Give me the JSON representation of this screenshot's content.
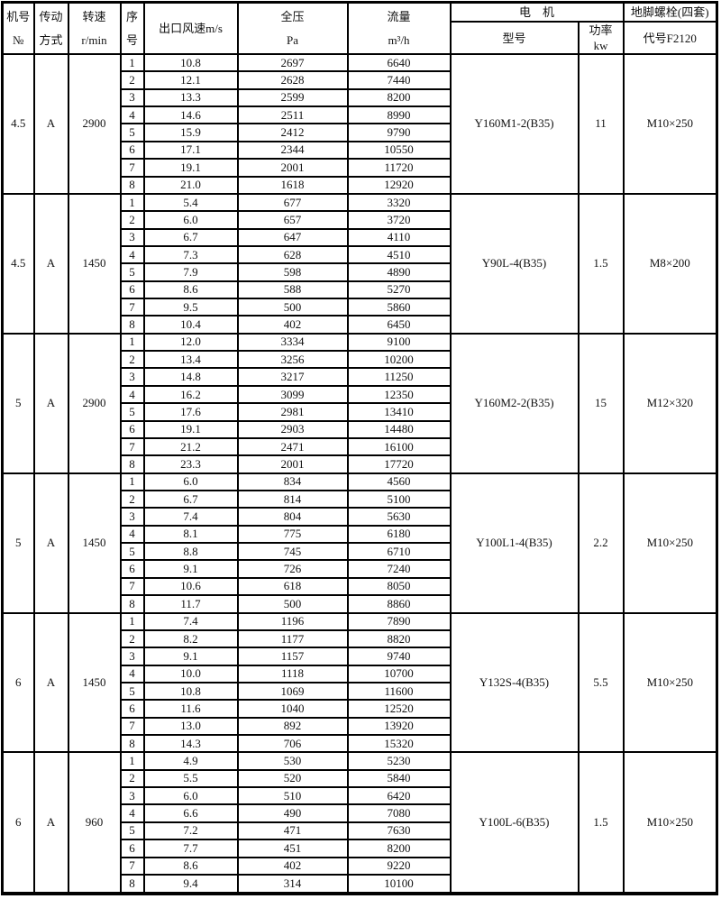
{
  "header": {
    "model_no": "机号\n№",
    "drive_mode": "传动\n方式",
    "speed": "转速\nr/min",
    "seq": "序\n号",
    "outlet_velocity": "出口风速m/s",
    "pressure": "全压\nPa",
    "flow": "流量\nm³/h",
    "motor": "电　机",
    "motor_model": "型号",
    "power": "功率\nkw",
    "bolt_title": "地脚螺栓(四套)",
    "bolt_code": "代号F2120"
  },
  "groups": [
    {
      "model_no": "4.5",
      "drive": "A",
      "rpm": "2900",
      "motor_model": "Y160M1-2(B35)",
      "power": "11",
      "bolt": "M10×250",
      "rows": [
        {
          "seq": "1",
          "velocity": "10.8",
          "pressure": "2697",
          "flow": "6640"
        },
        {
          "seq": "2",
          "velocity": "12.1",
          "pressure": "2628",
          "flow": "7440"
        },
        {
          "seq": "3",
          "velocity": "13.3",
          "pressure": "2599",
          "flow": "8200"
        },
        {
          "seq": "4",
          "velocity": "14.6",
          "pressure": "2511",
          "flow": "8990"
        },
        {
          "seq": "5",
          "velocity": "15.9",
          "pressure": "2412",
          "flow": "9790"
        },
        {
          "seq": "6",
          "velocity": "17.1",
          "pressure": "2344",
          "flow": "10550"
        },
        {
          "seq": "7",
          "velocity": "19.1",
          "pressure": "2001",
          "flow": "11720"
        },
        {
          "seq": "8",
          "velocity": "21.0",
          "pressure": "1618",
          "flow": "12920"
        }
      ]
    },
    {
      "model_no": "4.5",
      "drive": "A",
      "rpm": "1450",
      "motor_model": "Y90L-4(B35)",
      "power": "1.5",
      "bolt": "M8×200",
      "rows": [
        {
          "seq": "1",
          "velocity": "5.4",
          "pressure": "677",
          "flow": "3320"
        },
        {
          "seq": "2",
          "velocity": "6.0",
          "pressure": "657",
          "flow": "3720"
        },
        {
          "seq": "3",
          "velocity": "6.7",
          "pressure": "647",
          "flow": "4110"
        },
        {
          "seq": "4",
          "velocity": "7.3",
          "pressure": "628",
          "flow": "4510"
        },
        {
          "seq": "5",
          "velocity": "7.9",
          "pressure": "598",
          "flow": "4890"
        },
        {
          "seq": "6",
          "velocity": "8.6",
          "pressure": "588",
          "flow": "5270"
        },
        {
          "seq": "7",
          "velocity": "9.5",
          "pressure": "500",
          "flow": "5860"
        },
        {
          "seq": "8",
          "velocity": "10.4",
          "pressure": "402",
          "flow": "6450"
        }
      ]
    },
    {
      "model_no": "5",
      "drive": "A",
      "rpm": "2900",
      "motor_model": "Y160M2-2(B35)",
      "power": "15",
      "bolt": "M12×320",
      "rows": [
        {
          "seq": "1",
          "velocity": "12.0",
          "pressure": "3334",
          "flow": "9100"
        },
        {
          "seq": "2",
          "velocity": "13.4",
          "pressure": "3256",
          "flow": "10200"
        },
        {
          "seq": "3",
          "velocity": "14.8",
          "pressure": "3217",
          "flow": "11250"
        },
        {
          "seq": "4",
          "velocity": "16.2",
          "pressure": "3099",
          "flow": "12350"
        },
        {
          "seq": "5",
          "velocity": "17.6",
          "pressure": "2981",
          "flow": "13410"
        },
        {
          "seq": "6",
          "velocity": "19.1",
          "pressure": "2903",
          "flow": "14480"
        },
        {
          "seq": "7",
          "velocity": "21.2",
          "pressure": "2471",
          "flow": "16100"
        },
        {
          "seq": "8",
          "velocity": "23.3",
          "pressure": "2001",
          "flow": "17720"
        }
      ]
    },
    {
      "model_no": "5",
      "drive": "A",
      "rpm": "1450",
      "motor_model": "Y100L1-4(B35)",
      "power": "2.2",
      "bolt": "M10×250",
      "rows": [
        {
          "seq": "1",
          "velocity": "6.0",
          "pressure": "834",
          "flow": "4560"
        },
        {
          "seq": "2",
          "velocity": "6.7",
          "pressure": "814",
          "flow": "5100"
        },
        {
          "seq": "3",
          "velocity": "7.4",
          "pressure": "804",
          "flow": "5630"
        },
        {
          "seq": "4",
          "velocity": "8.1",
          "pressure": "775",
          "flow": "6180"
        },
        {
          "seq": "5",
          "velocity": "8.8",
          "pressure": "745",
          "flow": "6710"
        },
        {
          "seq": "6",
          "velocity": "9.1",
          "pressure": "726",
          "flow": "7240"
        },
        {
          "seq": "7",
          "velocity": "10.6",
          "pressure": "618",
          "flow": "8050"
        },
        {
          "seq": "8",
          "velocity": "11.7",
          "pressure": "500",
          "flow": "8860"
        }
      ]
    },
    {
      "model_no": "6",
      "drive": "A",
      "rpm": "1450",
      "motor_model": "Y132S-4(B35)",
      "power": "5.5",
      "bolt": "M10×250",
      "rows": [
        {
          "seq": "1",
          "velocity": "7.4",
          "pressure": "1196",
          "flow": "7890"
        },
        {
          "seq": "2",
          "velocity": "8.2",
          "pressure": "1177",
          "flow": "8820"
        },
        {
          "seq": "3",
          "velocity": "9.1",
          "pressure": "1157",
          "flow": "9740"
        },
        {
          "seq": "4",
          "velocity": "10.0",
          "pressure": "1118",
          "flow": "10700"
        },
        {
          "seq": "5",
          "velocity": "10.8",
          "pressure": "1069",
          "flow": "11600"
        },
        {
          "seq": "6",
          "velocity": "11.6",
          "pressure": "1040",
          "flow": "12520"
        },
        {
          "seq": "7",
          "velocity": "13.0",
          "pressure": "892",
          "flow": "13920"
        },
        {
          "seq": "8",
          "velocity": "14.3",
          "pressure": "706",
          "flow": "15320"
        }
      ]
    },
    {
      "model_no": "6",
      "drive": "A",
      "rpm": "960",
      "motor_model": "Y100L-6(B35)",
      "power": "1.5",
      "bolt": "M10×250",
      "rows": [
        {
          "seq": "1",
          "velocity": "4.9",
          "pressure": "530",
          "flow": "5230"
        },
        {
          "seq": "2",
          "velocity": "5.5",
          "pressure": "520",
          "flow": "5840"
        },
        {
          "seq": "3",
          "velocity": "6.0",
          "pressure": "510",
          "flow": "6420"
        },
        {
          "seq": "4",
          "velocity": "6.6",
          "pressure": "490",
          "flow": "7080"
        },
        {
          "seq": "5",
          "velocity": "7.2",
          "pressure": "471",
          "flow": "7630"
        },
        {
          "seq": "6",
          "velocity": "7.7",
          "pressure": "451",
          "flow": "8200"
        },
        {
          "seq": "7",
          "velocity": "8.6",
          "pressure": "402",
          "flow": "9220"
        },
        {
          "seq": "8",
          "velocity": "9.4",
          "pressure": "314",
          "flow": "10100"
        }
      ]
    }
  ]
}
